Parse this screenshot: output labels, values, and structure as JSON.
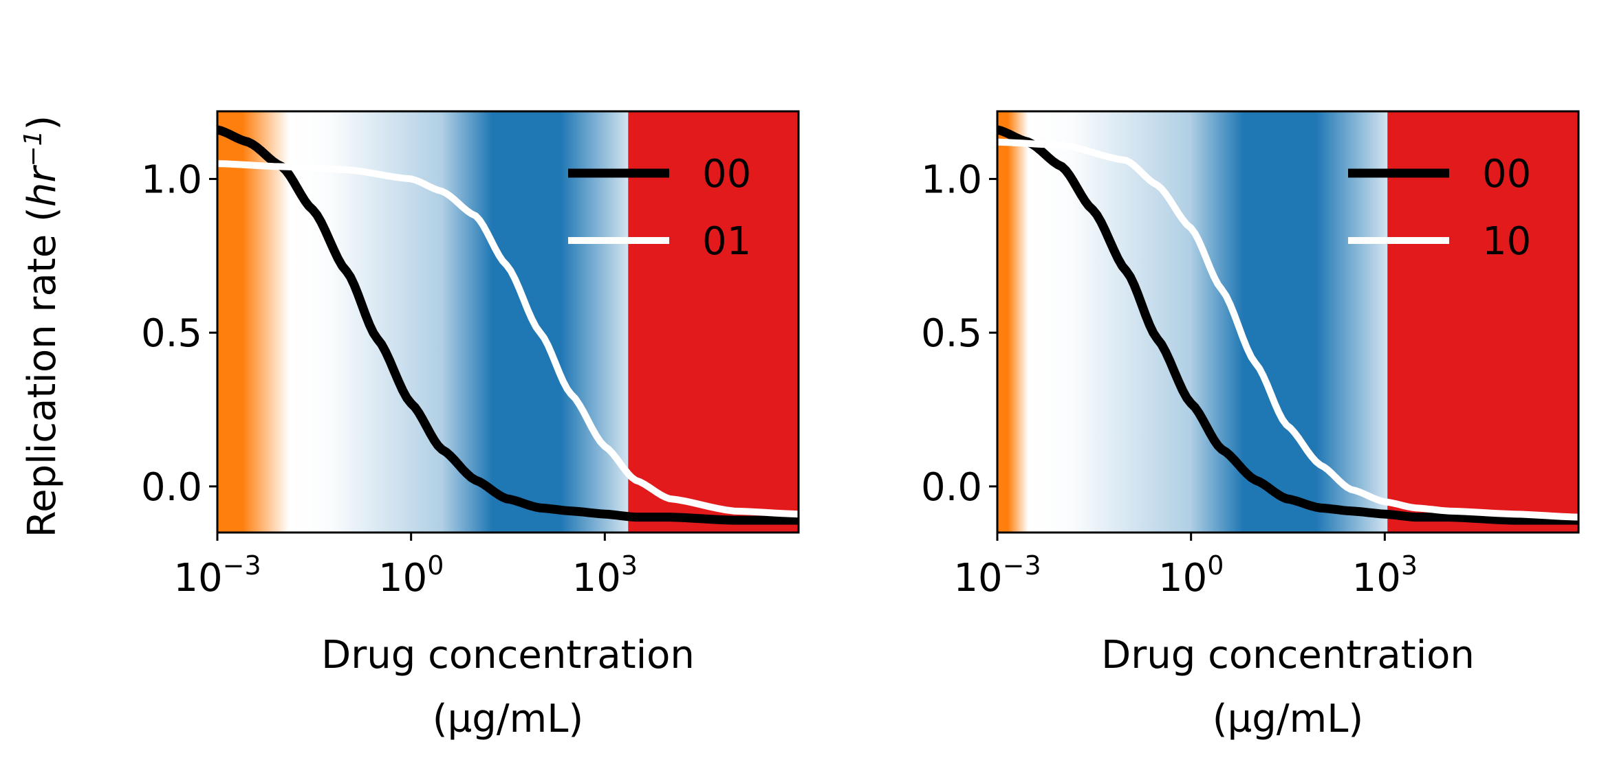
{
  "figure": {
    "ylabel_main": "Replication rate (",
    "ylabel_math_base": "hr",
    "ylabel_math_exp": "−1",
    "ylabel_close": ")"
  },
  "chart_data": [
    {
      "type": "line",
      "xlabel_line1": "Drug concentration",
      "xlabel_line2": "(µg/mL)",
      "xscale": "log",
      "xlim": [
        0.001,
        1000000
      ],
      "ylim": [
        -0.15,
        1.22
      ],
      "yticks": [
        "0.0",
        "0.5",
        "1.0"
      ],
      "xticks": [
        {
          "base": "10",
          "exp": "−3"
        },
        {
          "base": "10",
          "exp": "0"
        },
        {
          "base": "10",
          "exp": "3"
        }
      ],
      "background_bands": [
        {
          "name": "orange",
          "color": "#ff7f0e",
          "x_start": 0.001,
          "x_end": 0.013
        },
        {
          "name": "blue",
          "color": "#1f77b4",
          "x_start": 0.013,
          "x_end": 2300
        },
        {
          "name": "red",
          "color": "#e31a1c",
          "x_start": 2300,
          "x_end": 1000000
        }
      ],
      "legend_position": "top-right",
      "series": [
        {
          "name": "00",
          "color": "#000000",
          "x": [
            0.001,
            0.003,
            0.01,
            0.03,
            0.1,
            0.3,
            1,
            3,
            10,
            30,
            100,
            300,
            1000,
            3000,
            10000,
            100000,
            1000000
          ],
          "y": [
            1.16,
            1.12,
            1.04,
            0.9,
            0.7,
            0.48,
            0.27,
            0.12,
            0.02,
            -0.04,
            -0.07,
            -0.08,
            -0.09,
            -0.1,
            -0.1,
            -0.11,
            -0.11
          ]
        },
        {
          "name": "01",
          "color": "#ffffff",
          "x": [
            0.001,
            0.01,
            0.1,
            1,
            3,
            10,
            30,
            100,
            300,
            1000,
            3000,
            10000,
            100000,
            1000000
          ],
          "y": [
            1.05,
            1.04,
            1.03,
            1.0,
            0.96,
            0.88,
            0.72,
            0.5,
            0.3,
            0.13,
            0.02,
            -0.04,
            -0.08,
            -0.09
          ]
        }
      ]
    },
    {
      "type": "line",
      "xlabel_line1": "Drug concentration",
      "xlabel_line2": "(µg/mL)",
      "xscale": "log",
      "xlim": [
        0.001,
        1000000
      ],
      "ylim": [
        -0.15,
        1.22
      ],
      "yticks": [
        "0.0",
        "0.5",
        "1.0"
      ],
      "xticks": [
        {
          "base": "10",
          "exp": "−3"
        },
        {
          "base": "10",
          "exp": "0"
        },
        {
          "base": "10",
          "exp": "3"
        }
      ],
      "background_bands": [
        {
          "name": "orange",
          "color": "#ff7f0e",
          "x_start": 0.001,
          "x_end": 0.003
        },
        {
          "name": "blue",
          "color": "#1f77b4",
          "x_start": 0.003,
          "x_end": 1100
        },
        {
          "name": "red",
          "color": "#e31a1c",
          "x_start": 1100,
          "x_end": 1000000
        }
      ],
      "legend_position": "top-right",
      "series": [
        {
          "name": "00",
          "color": "#000000",
          "x": [
            0.001,
            0.003,
            0.01,
            0.03,
            0.1,
            0.3,
            1,
            3,
            10,
            30,
            100,
            300,
            1000,
            3000,
            10000,
            100000,
            1000000
          ],
          "y": [
            1.16,
            1.12,
            1.04,
            0.9,
            0.7,
            0.48,
            0.27,
            0.12,
            0.02,
            -0.04,
            -0.07,
            -0.08,
            -0.09,
            -0.1,
            -0.1,
            -0.11,
            -0.11
          ]
        },
        {
          "name": "10",
          "color": "#ffffff",
          "x": [
            0.001,
            0.01,
            0.1,
            0.3,
            1,
            3,
            10,
            30,
            100,
            300,
            1000,
            3000,
            10000,
            100000,
            1000000
          ],
          "y": [
            1.12,
            1.11,
            1.06,
            0.98,
            0.84,
            0.64,
            0.4,
            0.2,
            0.07,
            -0.01,
            -0.05,
            -0.07,
            -0.08,
            -0.09,
            -0.1
          ]
        }
      ]
    }
  ]
}
